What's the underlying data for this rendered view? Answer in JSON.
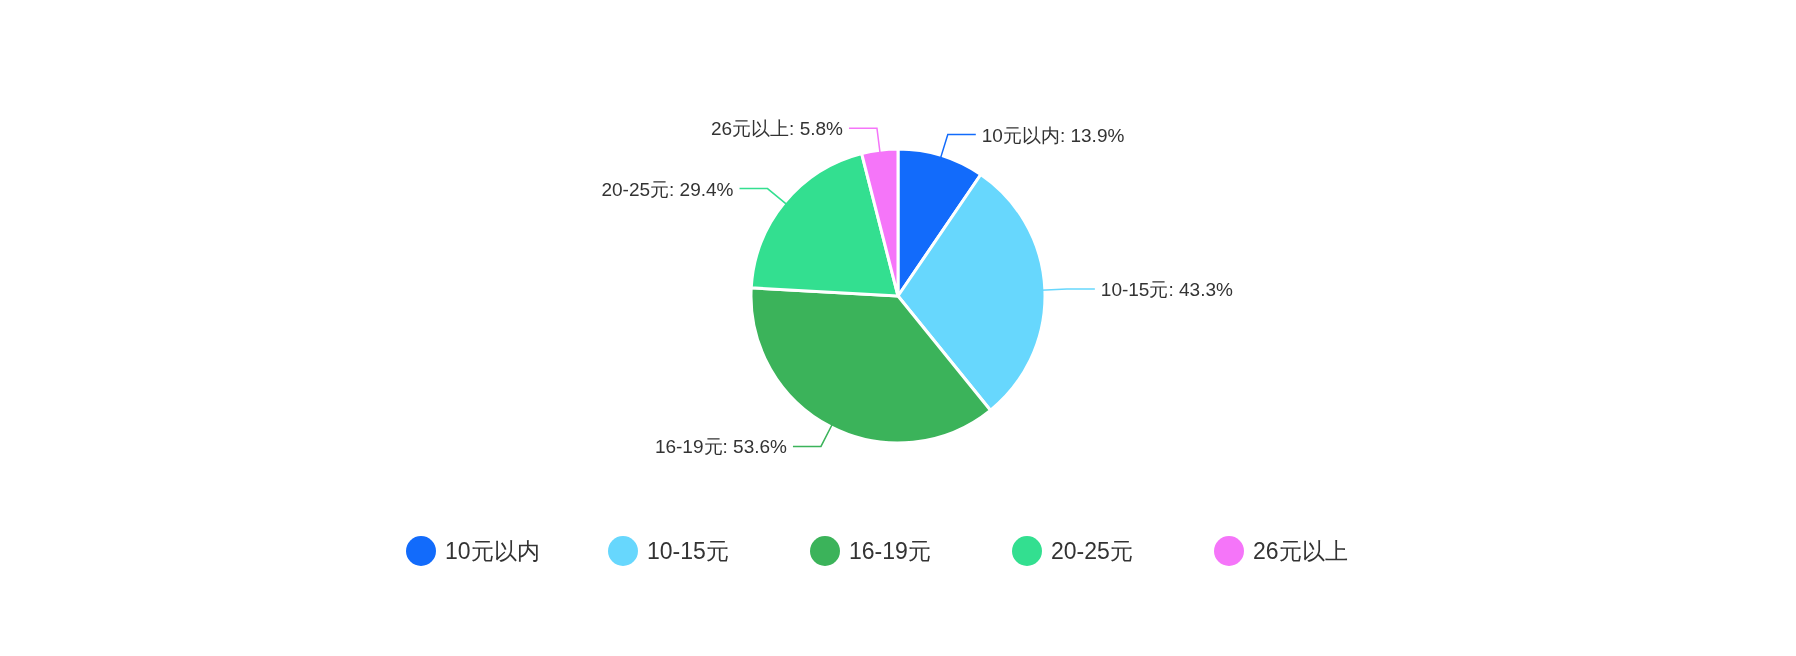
{
  "chart_data": {
    "type": "pie",
    "categories": [
      "10元以内",
      "10-15元",
      "16-19元",
      "20-25元",
      "26元以上"
    ],
    "values": [
      13.9,
      43.3,
      53.6,
      29.4,
      5.8
    ],
    "colors": [
      "#126bfb",
      "#67d7fd",
      "#3bb35a",
      "#33df90",
      "#f575f9"
    ],
    "value_labels": [
      "10元以内: 13.9%",
      "10-15元: 43.3%",
      "16-19元: 53.6%",
      "20-25元: 29.4%",
      "26元以上: 5.8%"
    ],
    "legend": "bottom"
  }
}
